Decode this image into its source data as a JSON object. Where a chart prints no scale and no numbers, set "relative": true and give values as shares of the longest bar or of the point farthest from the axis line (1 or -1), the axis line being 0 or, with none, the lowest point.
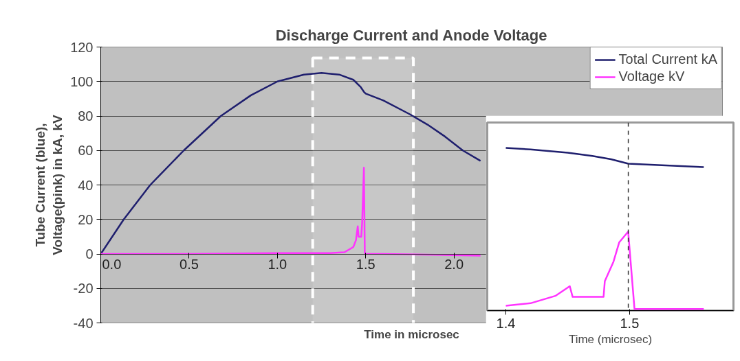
{
  "chart_data": [
    {
      "type": "line",
      "title": "Discharge Current and Anode Voltage",
      "xlabel": "Time in microsec",
      "ylabel": "Tube Current (blue),\nVoltage(pink) in kA, kV",
      "xlim": [
        0,
        3.52
      ],
      "xticks": [
        {
          "value": 0,
          "label": "0.0"
        },
        0.5,
        {
          "value": 1,
          "label": "1.0"
        },
        1.5,
        {
          "value": 2,
          "label": "2.0"
        }
      ],
      "ylim": [
        -40,
        120
      ],
      "yticks": [
        -40,
        -20,
        0,
        20,
        40,
        60,
        80,
        100,
        120
      ],
      "grid": "y",
      "legend": "top right",
      "bands": [
        {
          "axis": "x",
          "from": 1.2,
          "to": 1.77,
          "color": "#ffffff"
        }
      ],
      "series": [
        {
          "name": "Total Current kA",
          "color": "#1f1f6e",
          "x": [
            0,
            0.13,
            0.28,
            0.47,
            0.68,
            0.85,
            1.0,
            1.15,
            1.25,
            1.35,
            1.43,
            1.47,
            1.49,
            1.5,
            1.6,
            1.75,
            1.85,
            1.95,
            2.05,
            2.15
          ],
          "values": [
            0,
            20,
            40,
            60,
            80,
            92,
            100,
            104,
            105,
            104,
            101,
            97,
            94,
            93,
            89,
            81,
            75,
            68,
            60,
            54
          ]
        },
        {
          "name": "Voltage kV",
          "color": "#ff33ff",
          "x": [
            0,
            0.5,
            1.0,
            1.3,
            1.38,
            1.43,
            1.445,
            1.455,
            1.46,
            1.475,
            1.48,
            1.49,
            1.495,
            1.6,
            1.9,
            2.15
          ],
          "values": [
            0,
            0,
            0.5,
            0.5,
            1,
            4,
            8,
            16,
            10,
            10,
            18,
            50,
            0,
            0,
            -0.5,
            -1
          ]
        }
      ]
    },
    {
      "type": "line",
      "xlabel": "Time (microsec)",
      "relative": true,
      "xlim": [
        1.385,
        1.584
      ],
      "xticks": [
        1.4,
        1.5
      ],
      "ref_lines": [
        {
          "axis": "x",
          "value": 1.499,
          "color": "#333333",
          "line_style": "dashed"
        }
      ],
      "series": [
        {
          "color": "#1f1f6e",
          "x": [
            1.4,
            1.42,
            1.45,
            1.47,
            1.485,
            1.499,
            1.52,
            1.56
          ],
          "values": [
            1.0,
            0.99,
            0.97,
            0.95,
            0.93,
            0.903,
            0.895,
            0.882
          ]
        },
        {
          "color": "#ff33ff",
          "x": [
            1.4,
            1.42,
            1.44,
            1.4517,
            1.454,
            1.479,
            1.48,
            1.487,
            1.4917,
            1.4989,
            1.504,
            1.56
          ],
          "values": [
            0.03,
            0.045,
            0.09,
            0.15,
            0.084,
            0.084,
            0.18,
            0.3,
            0.42,
            0.485,
            0.01,
            0.01
          ]
        }
      ]
    }
  ]
}
